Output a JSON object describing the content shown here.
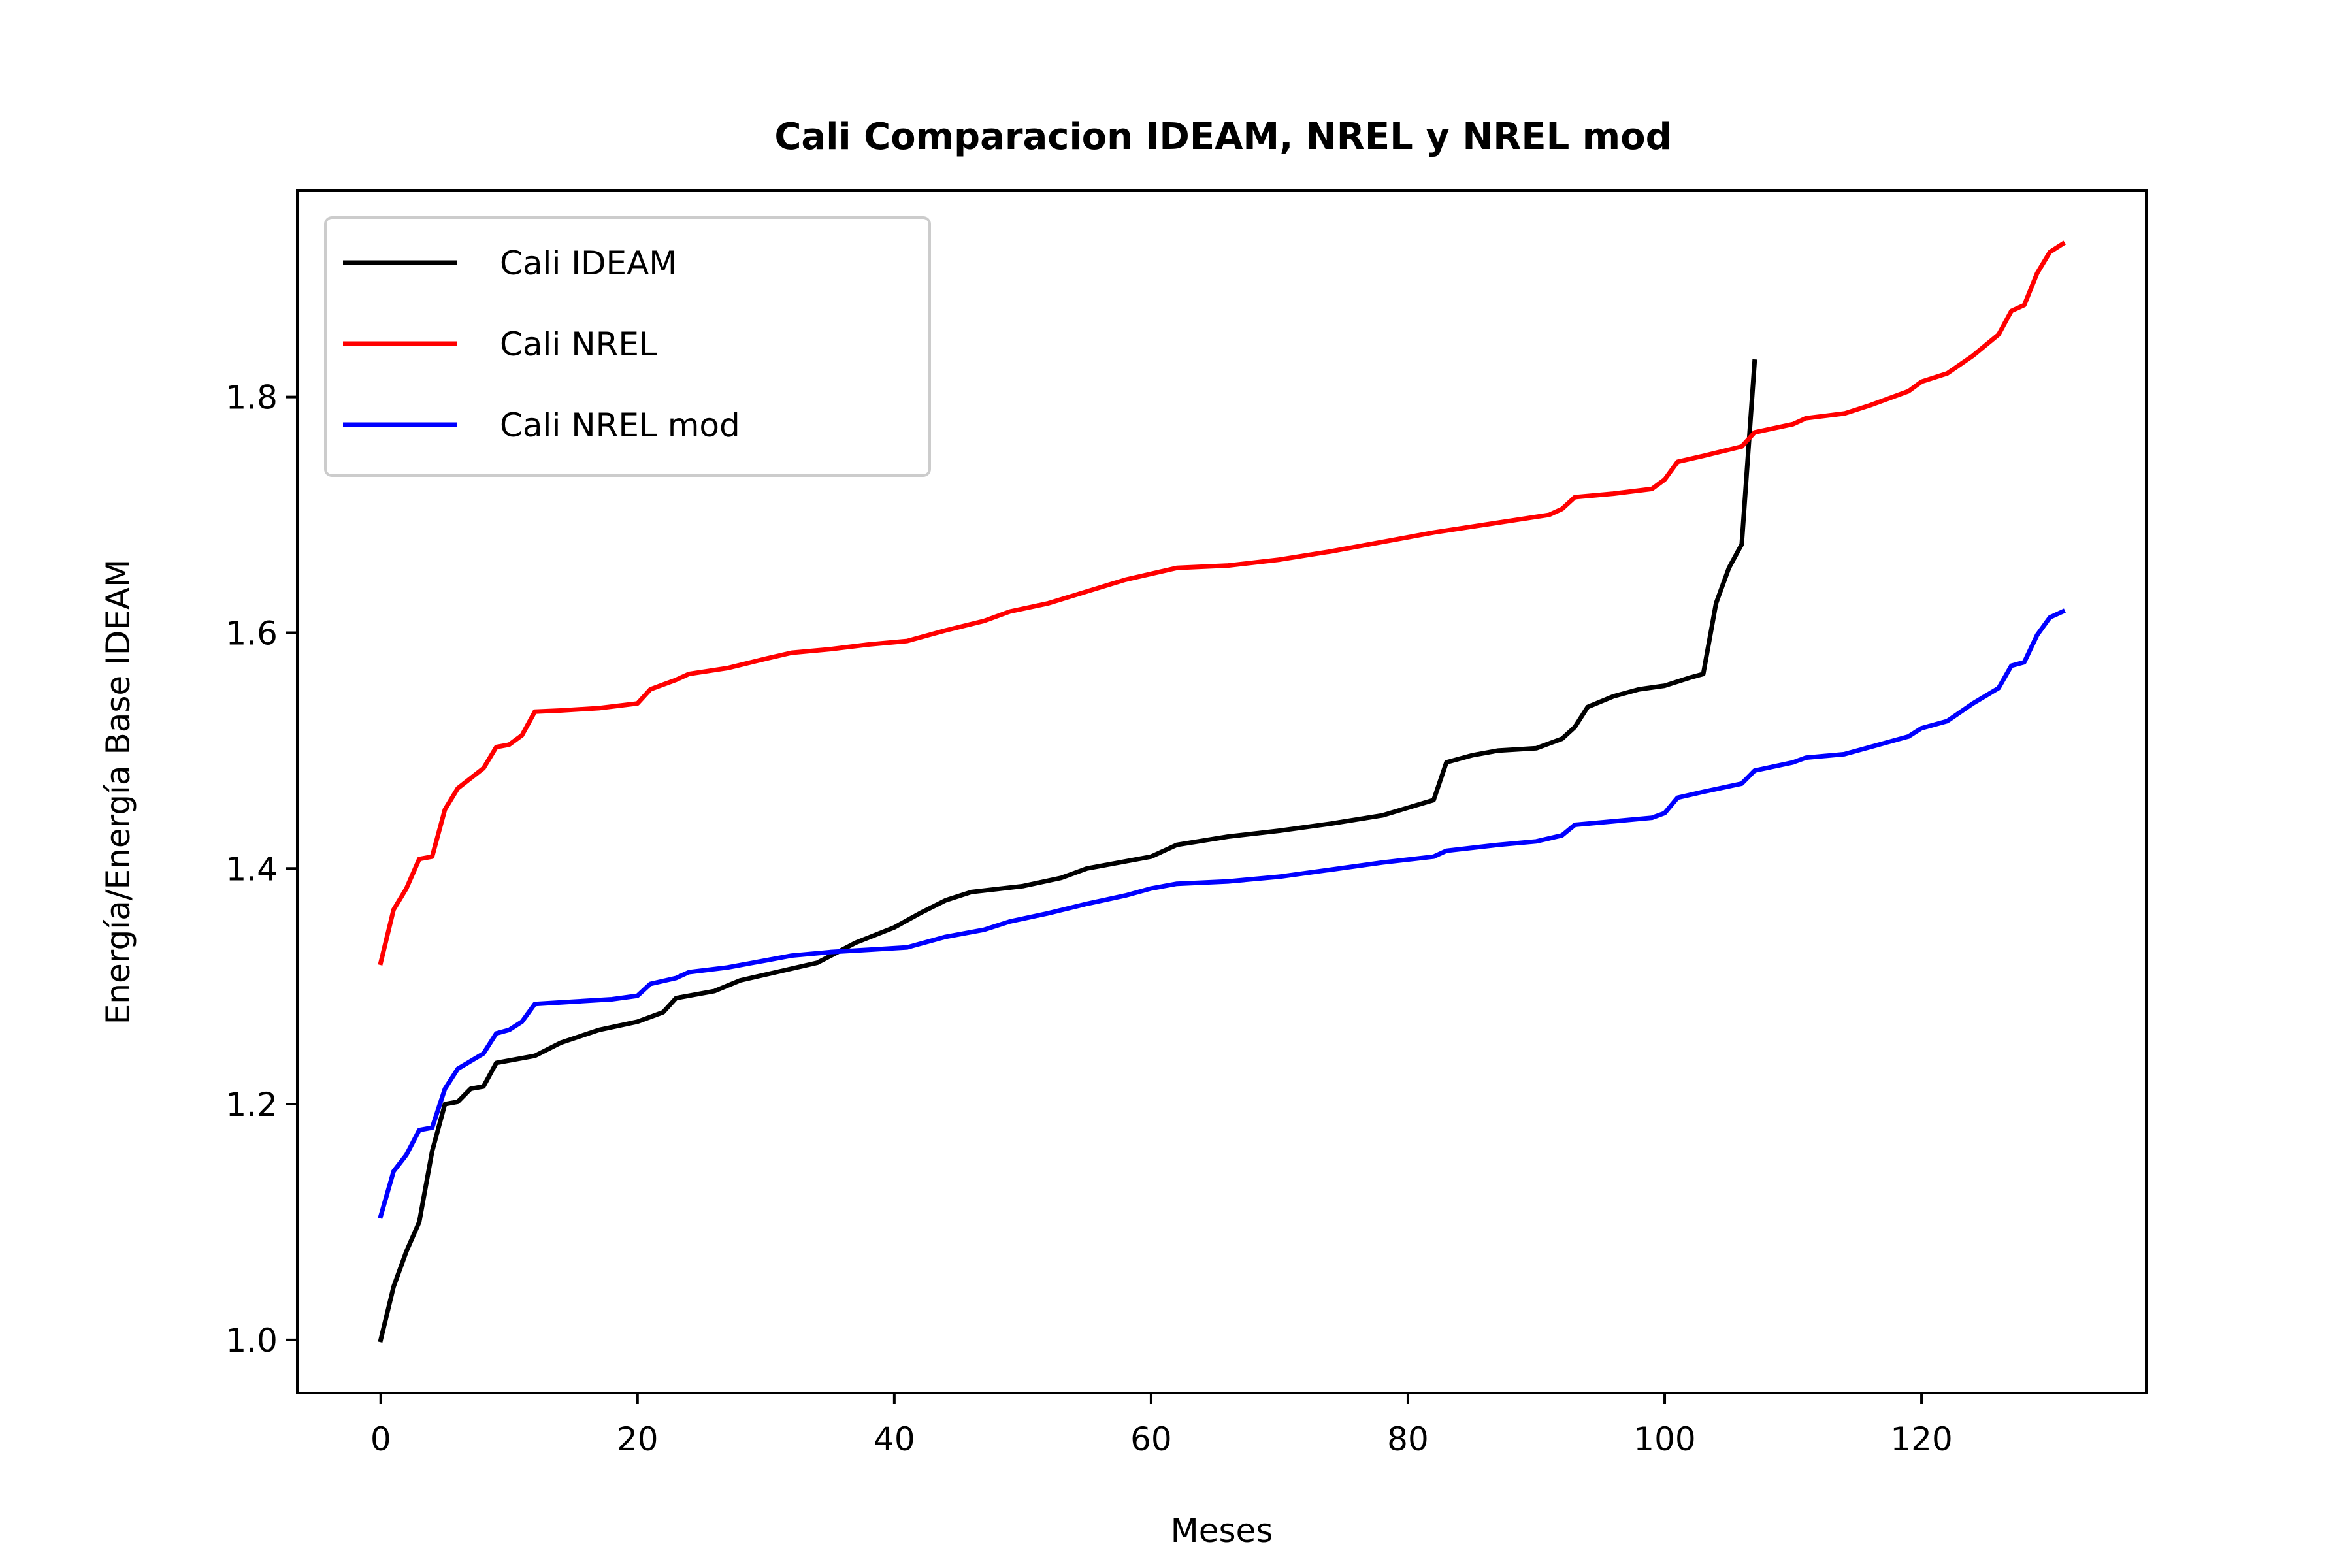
{
  "chart_data": {
    "type": "line",
    "title": "Cali Comparacion IDEAM, NREL y NREL mod",
    "xlabel": "Meses",
    "ylabel": "Energía/Energía Base IDEAM",
    "xlim": [
      -6.5,
      137.5
    ],
    "ylim": [
      0.955,
      1.975
    ],
    "xticks": [
      0,
      20,
      40,
      60,
      80,
      100,
      120
    ],
    "yticks": [
      1.0,
      1.2,
      1.4,
      1.6,
      1.8
    ],
    "xtick_labels": [
      "0",
      "20",
      "40",
      "60",
      "80",
      "100",
      "120"
    ],
    "ytick_labels": [
      "1.0",
      "1.2",
      "1.4",
      "1.6",
      "1.8"
    ],
    "grid": false,
    "legend_position": "upper-left",
    "series": [
      {
        "name": "Cali IDEAM",
        "color": "#000000",
        "points": [
          [
            0,
            1.0
          ],
          [
            1,
            1.045
          ],
          [
            2,
            1.075
          ],
          [
            3,
            1.1
          ],
          [
            4,
            1.16
          ],
          [
            5,
            1.2
          ],
          [
            6,
            1.202
          ],
          [
            7,
            1.213
          ],
          [
            8,
            1.215
          ],
          [
            9,
            1.235
          ],
          [
            12,
            1.241
          ],
          [
            14,
            1.252
          ],
          [
            17,
            1.263
          ],
          [
            20,
            1.27
          ],
          [
            22,
            1.278
          ],
          [
            23,
            1.29
          ],
          [
            26,
            1.296
          ],
          [
            28,
            1.305
          ],
          [
            30,
            1.31
          ],
          [
            32,
            1.315
          ],
          [
            34,
            1.32
          ],
          [
            37,
            1.337
          ],
          [
            40,
            1.35
          ],
          [
            42,
            1.362
          ],
          [
            44,
            1.373
          ],
          [
            46,
            1.38
          ],
          [
            50,
            1.385
          ],
          [
            53,
            1.392
          ],
          [
            55,
            1.4
          ],
          [
            60,
            1.41
          ],
          [
            62,
            1.42
          ],
          [
            66,
            1.427
          ],
          [
            70,
            1.432
          ],
          [
            74,
            1.438
          ],
          [
            78,
            1.445
          ],
          [
            82,
            1.458
          ],
          [
            83,
            1.49
          ],
          [
            85,
            1.496
          ],
          [
            87,
            1.5
          ],
          [
            90,
            1.502
          ],
          [
            92,
            1.51
          ],
          [
            93,
            1.52
          ],
          [
            94,
            1.537
          ],
          [
            96,
            1.546
          ],
          [
            98,
            1.552
          ],
          [
            100,
            1.555
          ],
          [
            102,
            1.562
          ],
          [
            103,
            1.565
          ],
          [
            104,
            1.625
          ],
          [
            105,
            1.655
          ],
          [
            106,
            1.675
          ],
          [
            107,
            1.83
          ]
        ]
      },
      {
        "name": "Cali NREL",
        "color": "#ff0000",
        "points": [
          [
            0,
            1.32
          ],
          [
            1,
            1.365
          ],
          [
            2,
            1.383
          ],
          [
            3,
            1.408
          ],
          [
            4,
            1.41
          ],
          [
            5,
            1.45
          ],
          [
            6,
            1.468
          ],
          [
            8,
            1.485
          ],
          [
            9,
            1.503
          ],
          [
            10,
            1.505
          ],
          [
            11,
            1.513
          ],
          [
            12,
            1.533
          ],
          [
            14,
            1.534
          ],
          [
            17,
            1.536
          ],
          [
            20,
            1.54
          ],
          [
            21,
            1.552
          ],
          [
            23,
            1.56
          ],
          [
            24,
            1.565
          ],
          [
            27,
            1.57
          ],
          [
            30,
            1.578
          ],
          [
            32,
            1.583
          ],
          [
            35,
            1.586
          ],
          [
            38,
            1.59
          ],
          [
            41,
            1.593
          ],
          [
            44,
            1.602
          ],
          [
            47,
            1.61
          ],
          [
            49,
            1.618
          ],
          [
            52,
            1.625
          ],
          [
            55,
            1.635
          ],
          [
            58,
            1.645
          ],
          [
            60,
            1.65
          ],
          [
            62,
            1.655
          ],
          [
            66,
            1.657
          ],
          [
            70,
            1.662
          ],
          [
            74,
            1.669
          ],
          [
            78,
            1.677
          ],
          [
            82,
            1.685
          ],
          [
            85,
            1.69
          ],
          [
            88,
            1.695
          ],
          [
            91,
            1.7
          ],
          [
            92,
            1.705
          ],
          [
            93,
            1.715
          ],
          [
            96,
            1.718
          ],
          [
            99,
            1.722
          ],
          [
            100,
            1.73
          ],
          [
            101,
            1.745
          ],
          [
            103,
            1.75
          ],
          [
            106,
            1.758
          ],
          [
            107,
            1.77
          ],
          [
            110,
            1.777
          ],
          [
            111,
            1.782
          ],
          [
            114,
            1.786
          ],
          [
            116,
            1.793
          ],
          [
            119,
            1.805
          ],
          [
            120,
            1.813
          ],
          [
            122,
            1.82
          ],
          [
            124,
            1.835
          ],
          [
            126,
            1.853
          ],
          [
            127,
            1.873
          ],
          [
            128,
            1.878
          ],
          [
            129,
            1.905
          ],
          [
            130,
            1.923
          ],
          [
            131,
            1.93
          ]
        ]
      },
      {
        "name": "Cali NREL mod",
        "color": "#0000ff",
        "points": [
          [
            0,
            1.105
          ],
          [
            1,
            1.143
          ],
          [
            2,
            1.157
          ],
          [
            3,
            1.178
          ],
          [
            4,
            1.18
          ],
          [
            5,
            1.213
          ],
          [
            6,
            1.23
          ],
          [
            8,
            1.243
          ],
          [
            9,
            1.26
          ],
          [
            10,
            1.263
          ],
          [
            11,
            1.27
          ],
          [
            12,
            1.285
          ],
          [
            15,
            1.287
          ],
          [
            18,
            1.289
          ],
          [
            20,
            1.292
          ],
          [
            21,
            1.302
          ],
          [
            23,
            1.307
          ],
          [
            24,
            1.312
          ],
          [
            27,
            1.316
          ],
          [
            30,
            1.322
          ],
          [
            32,
            1.326
          ],
          [
            35,
            1.329
          ],
          [
            38,
            1.331
          ],
          [
            41,
            1.333
          ],
          [
            44,
            1.342
          ],
          [
            47,
            1.348
          ],
          [
            49,
            1.355
          ],
          [
            52,
            1.362
          ],
          [
            55,
            1.37
          ],
          [
            58,
            1.377
          ],
          [
            60,
            1.383
          ],
          [
            62,
            1.387
          ],
          [
            66,
            1.389
          ],
          [
            70,
            1.393
          ],
          [
            74,
            1.399
          ],
          [
            78,
            1.405
          ],
          [
            82,
            1.41
          ],
          [
            83,
            1.415
          ],
          [
            87,
            1.42
          ],
          [
            90,
            1.423
          ],
          [
            92,
            1.428
          ],
          [
            93,
            1.437
          ],
          [
            96,
            1.44
          ],
          [
            99,
            1.443
          ],
          [
            100,
            1.447
          ],
          [
            101,
            1.46
          ],
          [
            103,
            1.465
          ],
          [
            106,
            1.472
          ],
          [
            107,
            1.483
          ],
          [
            110,
            1.49
          ],
          [
            111,
            1.494
          ],
          [
            114,
            1.497
          ],
          [
            116,
            1.503
          ],
          [
            119,
            1.512
          ],
          [
            120,
            1.519
          ],
          [
            122,
            1.525
          ],
          [
            124,
            1.54
          ],
          [
            126,
            1.553
          ],
          [
            127,
            1.572
          ],
          [
            128,
            1.575
          ],
          [
            129,
            1.598
          ],
          [
            130,
            1.613
          ],
          [
            131,
            1.618
          ]
        ]
      }
    ]
  }
}
